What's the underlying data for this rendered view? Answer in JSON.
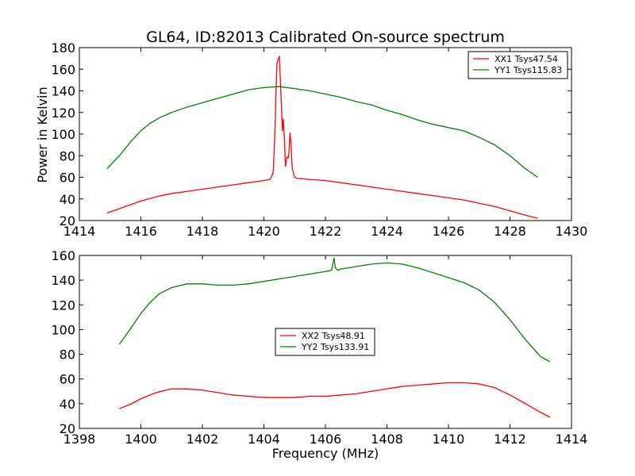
{
  "chart_data": [
    {
      "type": "line",
      "title": "GL64, ID:82013 Calibrated On-source spectrum",
      "xlabel": "",
      "ylabel": "Power in Kelvin",
      "xlim": [
        1414,
        1430
      ],
      "ylim": [
        20,
        180
      ],
      "xticks": [
        1414,
        1416,
        1418,
        1420,
        1422,
        1424,
        1426,
        1428,
        1430
      ],
      "yticks": [
        20,
        40,
        60,
        80,
        100,
        120,
        140,
        160,
        180
      ],
      "legend_position": "top-right",
      "series": [
        {
          "name": "XX1 Tsys47.54",
          "color": "#ff0000",
          "x": [
            1414.9,
            1415.5,
            1416.0,
            1416.5,
            1417.0,
            1417.5,
            1418.0,
            1418.5,
            1419.0,
            1419.5,
            1420.0,
            1420.2,
            1420.3,
            1420.35,
            1420.42,
            1420.45,
            1420.5,
            1420.55,
            1420.6,
            1420.63,
            1420.66,
            1420.7,
            1420.75,
            1420.8,
            1420.85,
            1420.88,
            1420.92,
            1421.0,
            1421.1,
            1421.5,
            1422.0,
            1422.5,
            1423.0,
            1423.5,
            1424.0,
            1424.5,
            1425.0,
            1425.5,
            1426.0,
            1426.5,
            1427.0,
            1427.5,
            1428.0,
            1428.5,
            1428.9
          ],
          "y": [
            27,
            33,
            38,
            42,
            45,
            47,
            49,
            51,
            53,
            55,
            57,
            58,
            64,
            95,
            165,
            168,
            172,
            140,
            103,
            114,
            99,
            70,
            79,
            78,
            101,
            92,
            68,
            60,
            59,
            58,
            57,
            55,
            53,
            51,
            49,
            47,
            45,
            43,
            41,
            39,
            36,
            33,
            29,
            25,
            22
          ]
        },
        {
          "name": "YY1 Tsys115.83",
          "color": "#008000",
          "x": [
            1414.9,
            1415.3,
            1415.7,
            1416.0,
            1416.3,
            1416.6,
            1417.0,
            1417.5,
            1418.0,
            1418.5,
            1419.0,
            1419.5,
            1420.0,
            1420.5,
            1421.0,
            1421.5,
            1422.0,
            1422.5,
            1423.0,
            1423.5,
            1424.0,
            1424.5,
            1425.0,
            1425.5,
            1426.0,
            1426.5,
            1427.0,
            1427.5,
            1428.0,
            1428.5,
            1428.9
          ],
          "y": [
            68,
            80,
            94,
            103,
            110,
            115,
            120,
            125,
            129,
            133,
            137,
            141,
            143,
            144,
            142,
            140,
            137,
            134,
            130,
            127,
            122,
            118,
            113,
            109,
            106,
            103,
            97,
            90,
            80,
            68,
            60
          ]
        }
      ]
    },
    {
      "type": "line",
      "title": "",
      "xlabel": "Frequency (MHz)",
      "ylabel": "",
      "xlim": [
        1398,
        1414
      ],
      "ylim": [
        20,
        160
      ],
      "xticks": [
        1398,
        1400,
        1402,
        1404,
        1406,
        1408,
        1410,
        1412,
        1414
      ],
      "yticks": [
        20,
        40,
        60,
        80,
        100,
        120,
        140,
        160
      ],
      "legend_position": "center",
      "series": [
        {
          "name": "XX2 Tsys48.91",
          "color": "#ff0000",
          "x": [
            1399.3,
            1399.7,
            1400.0,
            1400.5,
            1401.0,
            1401.5,
            1402.0,
            1402.5,
            1403.0,
            1403.5,
            1404.0,
            1404.5,
            1405.0,
            1405.5,
            1406.0,
            1406.5,
            1407.0,
            1407.5,
            1408.0,
            1408.5,
            1409.0,
            1409.5,
            1410.0,
            1410.5,
            1411.0,
            1411.5,
            1412.0,
            1412.5,
            1413.0,
            1413.3
          ],
          "y": [
            36,
            40,
            44,
            49,
            52,
            52,
            51,
            49,
            47,
            46,
            45,
            45,
            45,
            46,
            46,
            47,
            48,
            50,
            52,
            54,
            55,
            56,
            57,
            57,
            56,
            53,
            47,
            40,
            33,
            29
          ]
        },
        {
          "name": "YY2 Tsys133.91",
          "color": "#008000",
          "x": [
            1399.3,
            1399.7,
            1400.0,
            1400.3,
            1400.6,
            1401.0,
            1401.5,
            1402.0,
            1402.5,
            1403.0,
            1403.5,
            1404.0,
            1404.5,
            1405.0,
            1405.5,
            1406.0,
            1406.2,
            1406.28,
            1406.32,
            1406.4,
            1406.5,
            1407.0,
            1407.5,
            1408.0,
            1408.5,
            1409.0,
            1409.5,
            1410.0,
            1410.5,
            1411.0,
            1411.5,
            1412.0,
            1412.5,
            1413.0,
            1413.3
          ],
          "y": [
            88,
            102,
            113,
            122,
            129,
            134,
            137,
            137,
            136,
            136,
            137,
            139,
            141,
            143,
            145,
            147,
            148,
            158,
            150,
            148,
            149,
            151,
            153,
            154,
            153,
            150,
            146,
            142,
            138,
            132,
            122,
            108,
            92,
            78,
            74
          ]
        }
      ]
    }
  ]
}
